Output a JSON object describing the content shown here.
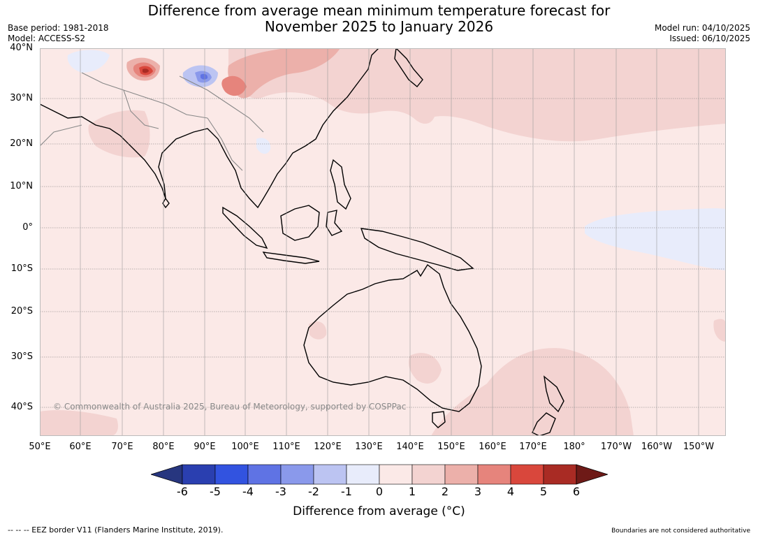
{
  "title": {
    "line1": "Difference from average mean minimum temperature forecast for",
    "line2": "November 2025 to January 2026"
  },
  "meta": {
    "base_period": "Base period: 1981-2018",
    "model": "Model: ACCESS-S2",
    "model_run": "Model run: 04/10/2025",
    "issued": "Issued: 06/10/2025"
  },
  "map": {
    "lat_labels": [
      "40°N",
      "30°N",
      "20°N",
      "10°N",
      "0°",
      "10°S",
      "20°S",
      "30°S",
      "40°S"
    ],
    "lon_labels": [
      "50°E",
      "60°E",
      "70°E",
      "80°E",
      "90°E",
      "100°E",
      "110°E",
      "120°E",
      "130°E",
      "140°E",
      "150°E",
      "160°E",
      "170°E",
      "180°",
      "170°W",
      "160°W",
      "150°W"
    ],
    "copyright": "© Commonwealth of Australia 2025, Bureau of Meteorology, supported by COSPPac",
    "colors": {
      "background_anomaly_0_1": "#fbe9e7",
      "anomaly_1_2": "#f3d3d1",
      "anomaly_2_3": "#ecb0aa",
      "anomaly_3_4": "#e6847c",
      "anomaly_4_5": "#d9473c",
      "anomaly_neg1_0": "#e8ecfb",
      "anomaly_neg2_neg1": "#bcc4f2",
      "land_outline": "#000000",
      "border_line": "#888888"
    }
  },
  "colorbar": {
    "ticks": [
      "-6",
      "-5",
      "-4",
      "-3",
      "-2",
      "-1",
      "0",
      "1",
      "2",
      "3",
      "4",
      "5",
      "6"
    ],
    "colors": [
      "#27367f",
      "#2a3fb0",
      "#3253e0",
      "#5f73e4",
      "#8a99eb",
      "#bcc4f2",
      "#e8ecfb",
      "#fbe9e7",
      "#f3d3d1",
      "#ecb0aa",
      "#e6847c",
      "#d9473c",
      "#a92b24",
      "#6e1a17"
    ],
    "label": "Difference from average (°C)"
  },
  "footer": {
    "left": "--  --  -- EEZ border V11 (Flanders Marine Institute, 2019).",
    "right": "Boundaries are not considered authoritative"
  }
}
